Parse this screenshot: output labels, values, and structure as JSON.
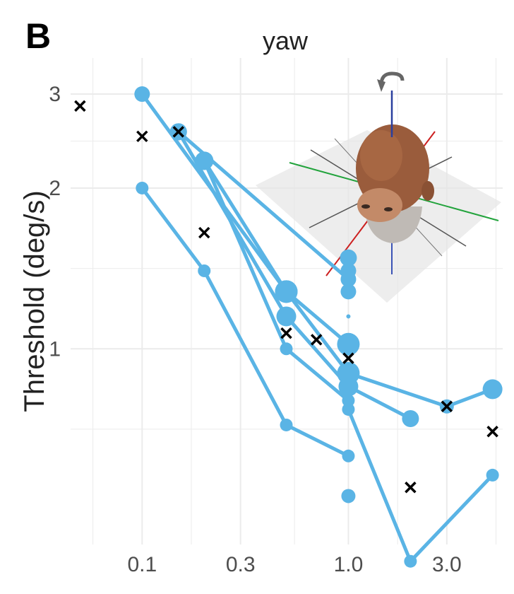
{
  "panel_label": "B",
  "chart_data": {
    "type": "line",
    "title": "yaw",
    "xlabel": "",
    "ylabel": "Threshold (deg/s)",
    "x_scale": "log",
    "y_scale": "log",
    "x_ticks": [
      0.1,
      0.3,
      1.0,
      3.0
    ],
    "x_tick_labels": [
      "0.1",
      "0.3",
      "1.0",
      "3.0"
    ],
    "y_ticks": [
      1,
      2,
      3
    ],
    "y_tick_labels": [
      "1",
      "2",
      "3"
    ],
    "xlim": [
      0.045,
      5.6
    ],
    "ylim": [
      0.43,
      3.4
    ],
    "grid": true,
    "colors": {
      "line": "#5ab4e5",
      "median": "#000000",
      "grid": "#ebebeb"
    },
    "series": [
      {
        "x": [
          0.1,
          0.5,
          1.0,
          3.0,
          5.0
        ],
        "y": [
          3.0,
          1.28,
          0.9,
          0.78,
          0.84
        ],
        "size": [
          11,
          16,
          16,
          10,
          14
        ]
      },
      {
        "x": [
          0.15,
          0.5,
          1.0,
          2.0
        ],
        "y": [
          2.55,
          1.15,
          0.85,
          0.74
        ],
        "size": [
          12,
          14,
          14,
          12
        ]
      },
      {
        "x": [
          0.2,
          0.5,
          1.0
        ],
        "y": [
          2.25,
          1.0,
          0.8
        ],
        "size": [
          13,
          9,
          9
        ]
      },
      {
        "x": [
          0.1,
          0.2,
          0.5,
          1.0
        ],
        "y": [
          2.0,
          1.4,
          0.72,
          0.63
        ],
        "size": [
          9,
          9,
          9,
          9
        ]
      },
      {
        "x": [
          0.2,
          0.5,
          1.0
        ],
        "y": [
          2.25,
          1.28,
          1.02
        ],
        "size": [
          13,
          16,
          16
        ]
      },
      {
        "x": [
          0.15,
          1.0
        ],
        "y": [
          2.55,
          1.35
        ],
        "size": [
          12,
          11
        ]
      },
      {
        "x": [
          1.0,
          2.0,
          5.0
        ],
        "y": [
          0.77,
          0.4,
          0.58
        ],
        "size": [
          9,
          9,
          9
        ]
      }
    ],
    "extra_points": [
      {
        "x": 1.0,
        "y": 1.48,
        "size": 12
      },
      {
        "x": 1.0,
        "y": 1.4,
        "size": 11
      },
      {
        "x": 1.0,
        "y": 1.28,
        "size": 11
      },
      {
        "x": 1.0,
        "y": 1.15,
        "size": 3
      },
      {
        "x": 1.0,
        "y": 0.53,
        "size": 10
      }
    ],
    "median_x": [
      0.05,
      0.1,
      0.15,
      0.2,
      0.5,
      0.7,
      1.0,
      2.0,
      3.0,
      5.0
    ],
    "median_y": [
      2.85,
      2.5,
      2.55,
      1.65,
      1.07,
      1.04,
      0.96,
      0.55,
      0.78,
      0.7
    ]
  }
}
